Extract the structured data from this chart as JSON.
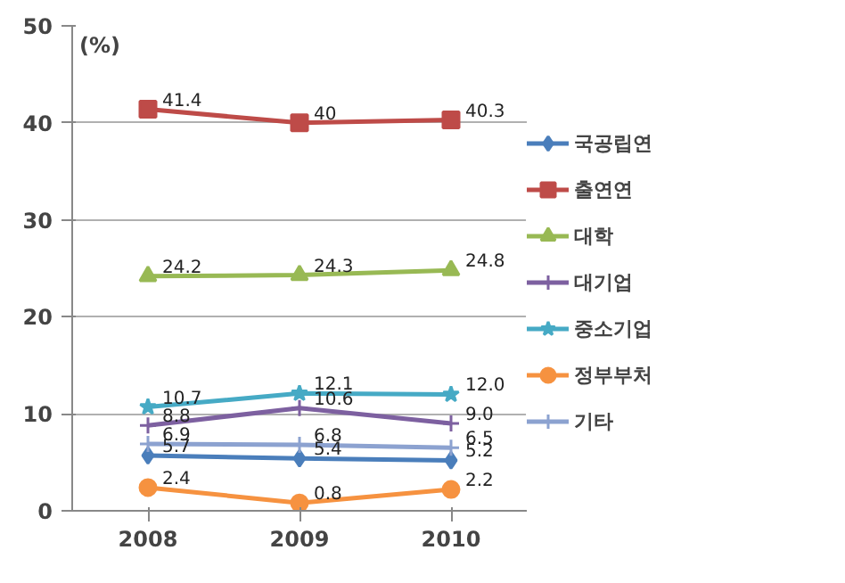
{
  "chart_data": {
    "type": "line",
    "ylabel": "(%)",
    "categories": [
      "2008",
      "2009",
      "2010"
    ],
    "ylim": [
      0,
      50
    ],
    "yticks": [
      0,
      10,
      20,
      30,
      40,
      50
    ],
    "grid": "y",
    "legend": "right",
    "series": [
      {
        "name": "국공립연",
        "color": "#4a7ebb",
        "marker": "diamond",
        "values": [
          5.7,
          5.4,
          5.2
        ],
        "value_labels": [
          "5.7",
          "5.4",
          "5.2"
        ]
      },
      {
        "name": "출연연",
        "color": "#be4b48",
        "marker": "square",
        "values": [
          41.4,
          40,
          40.3
        ],
        "value_labels": [
          "41.4",
          "40",
          "40.3"
        ]
      },
      {
        "name": "대학",
        "color": "#98b954",
        "marker": "triangle",
        "values": [
          24.2,
          24.3,
          24.8
        ],
        "value_labels": [
          "24.2",
          "24.3",
          "24.8"
        ]
      },
      {
        "name": "대기업",
        "color": "#7d60a0",
        "marker": "cross",
        "values": [
          8.8,
          10.6,
          9.0
        ],
        "value_labels": [
          "8.8",
          "10.6",
          "9.0"
        ]
      },
      {
        "name": "중소기업",
        "color": "#46aac5",
        "marker": "star",
        "values": [
          10.7,
          12.1,
          12.0
        ],
        "value_labels": [
          "10.7",
          "12.1",
          "12.0"
        ]
      },
      {
        "name": "정부부처",
        "color": "#f69240",
        "marker": "circle",
        "values": [
          2.4,
          0.8,
          2.2
        ],
        "value_labels": [
          "2.4",
          "0.8",
          "2.2"
        ]
      },
      {
        "name": "기타",
        "color": "#8ca2d0",
        "marker": "cross",
        "values": [
          6.9,
          6.8,
          6.5
        ],
        "value_labels": [
          "6.9",
          "6.8",
          "6.5"
        ]
      }
    ]
  }
}
